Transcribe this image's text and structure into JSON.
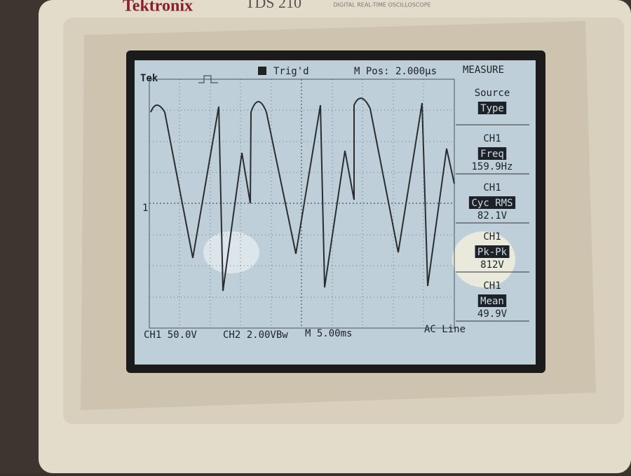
{
  "header": {
    "brand": "Tektronix",
    "model": "TDS 210",
    "subtitle": "DIGITAL REAL-TIME OSCILLOSCOPE"
  },
  "screen": {
    "status": {
      "logo": "Tek",
      "trigger": "Trig'd",
      "position": "M Pos: 2.000µs",
      "menu": "MEASURE"
    },
    "marker": "1",
    "menu": [
      {
        "label": "Source",
        "value": "Type"
      },
      {
        "label": "CH1",
        "value": "Freq",
        "reading": "159.9Hz"
      },
      {
        "label": "CH1",
        "value": "Cyc RMS",
        "reading": "82.1V"
      },
      {
        "label": "CH1",
        "value": "Pk-Pk",
        "reading": "812V"
      },
      {
        "label": "CH1",
        "value": "Mean",
        "reading": "49.9V"
      }
    ],
    "footer": {
      "ch1": "CH1  50.0V",
      "ch2": "CH2  2.00VBw",
      "time": "M 5.00ms",
      "trigger": "AC Line"
    }
  }
}
